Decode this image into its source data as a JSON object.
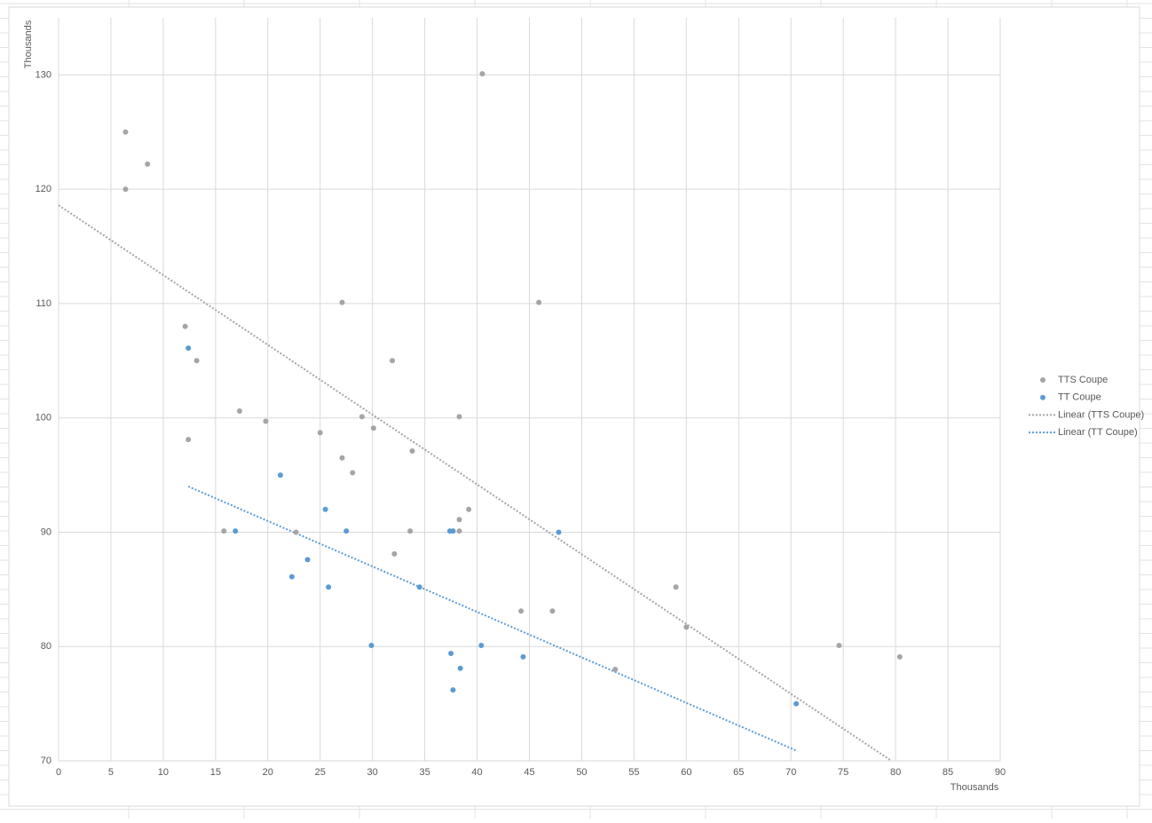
{
  "chart_data": {
    "type": "scatter",
    "x_label": "Thousands",
    "y_label": "Thousands",
    "xlim": [
      0,
      90
    ],
    "ylim": [
      70,
      135
    ],
    "xticks": [
      0,
      5,
      10,
      15,
      20,
      25,
      30,
      35,
      40,
      45,
      50,
      55,
      60,
      65,
      70,
      75,
      80,
      85,
      90
    ],
    "yticks": [
      70,
      80,
      90,
      100,
      110,
      120,
      130
    ],
    "grid": true,
    "legend": "right",
    "series": [
      {
        "name": "TTS Coupe",
        "color": "#a5a5a5",
        "x": [
          6.4,
          8.5,
          6.4,
          12.1,
          13.2,
          12.4,
          17.3,
          19.8,
          15.8,
          22.7,
          25.0,
          27.1,
          27.1,
          28.1,
          29.0,
          30.1,
          31.9,
          32.1,
          33.6,
          33.8,
          38.3,
          38.3,
          38.3,
          39.2,
          40.5,
          44.2,
          45.9,
          47.2,
          53.2,
          59.0,
          60.0,
          74.6,
          80.4
        ],
        "values": [
          125,
          122.2,
          120,
          108,
          105,
          98.1,
          100.6,
          99.7,
          90.1,
          90,
          98.7,
          110.1,
          96.5,
          95.2,
          100.1,
          99.1,
          105,
          88.1,
          90.1,
          97.1,
          100.1,
          91.1,
          90.1,
          92,
          130.1,
          83.1,
          110.1,
          83.1,
          78,
          85.2,
          81.7,
          80.1,
          79.1
        ]
      },
      {
        "name": "TT Coupe",
        "color": "#5b9bd5",
        "x": [
          12.4,
          16.9,
          21.2,
          22.3,
          23.8,
          25.5,
          25.8,
          27.5,
          29.9,
          34.5,
          37.4,
          37.7,
          37.5,
          37.7,
          38.4,
          40.4,
          44.4,
          47.8,
          70.5
        ],
        "values": [
          106.1,
          90.1,
          95,
          86.1,
          87.6,
          92,
          85.2,
          90.1,
          80.1,
          85.2,
          90.1,
          90.1,
          79.4,
          76.2,
          78.1,
          80.1,
          79.1,
          90,
          75
        ]
      }
    ],
    "trendlines": [
      {
        "name": "Linear (TTS Coupe)",
        "color": "#a5a5a5",
        "x": [
          0,
          79.6
        ],
        "values": [
          118.6,
          70
        ]
      },
      {
        "name": "Linear (TT Coupe)",
        "color": "#5b9bd5",
        "x": [
          12.4,
          70.5
        ],
        "values": [
          94,
          70.9
        ]
      }
    ]
  }
}
